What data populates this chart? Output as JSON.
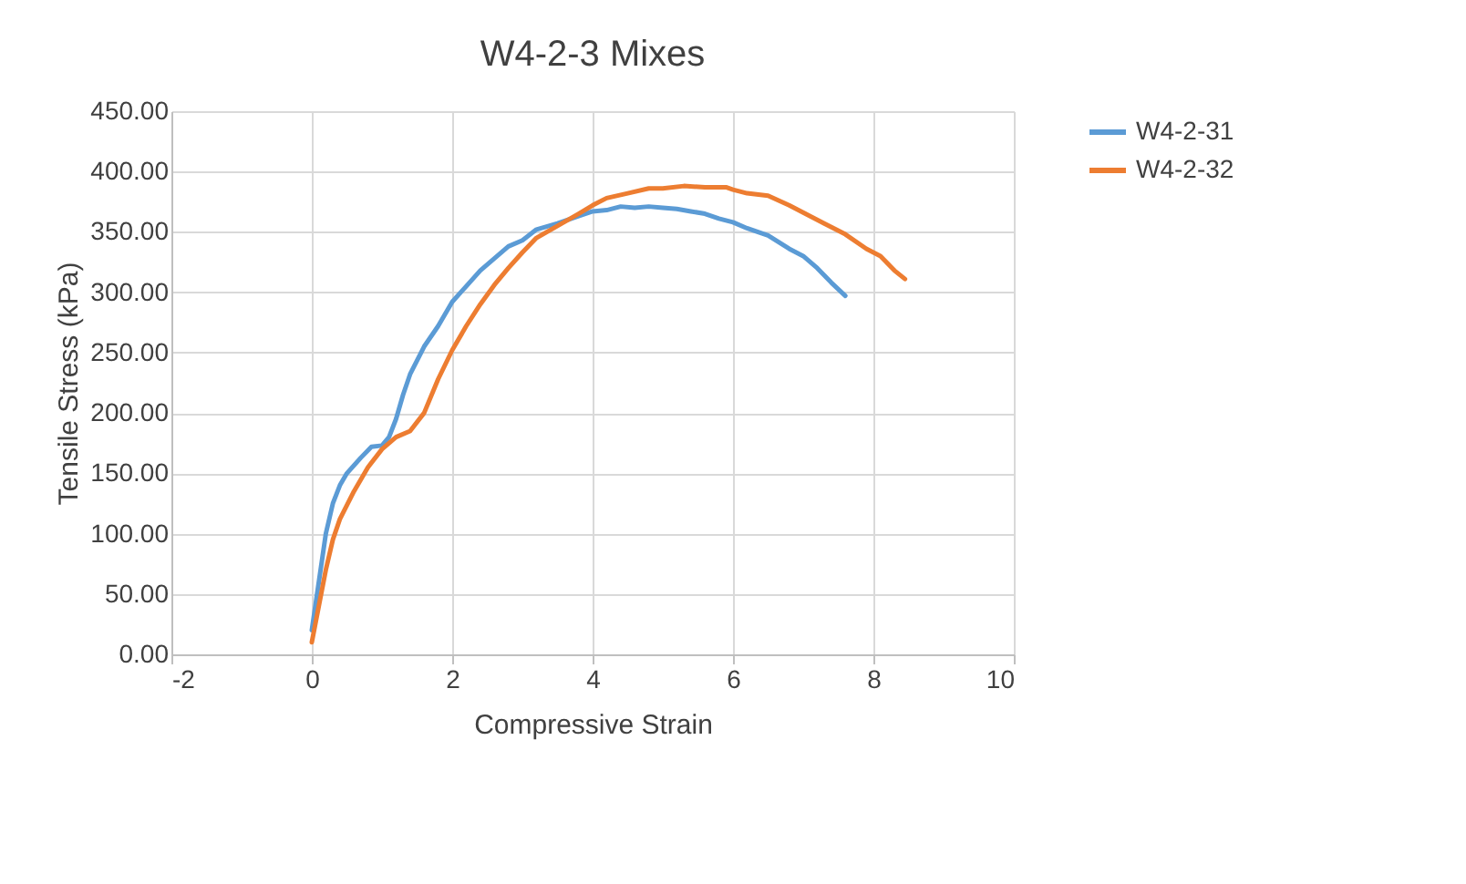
{
  "chart_data": {
    "type": "line",
    "title": "W4-2-3 Mixes",
    "xlabel": "Compressive Strain",
    "ylabel": "Tensile Stress (kPa)",
    "xlim": [
      -2,
      10
    ],
    "xticks": [
      -2,
      0,
      2,
      4,
      6,
      8,
      10
    ],
    "ylim": [
      0,
      450
    ],
    "yticks": [
      {
        "value": 0,
        "label": "0.00"
      },
      {
        "value": 50,
        "label": "50.00"
      },
      {
        "value": 100,
        "label": "100.00"
      },
      {
        "value": 150,
        "label": "150.00"
      },
      {
        "value": 200,
        "label": "200.00"
      },
      {
        "value": 250,
        "label": "250.00"
      },
      {
        "value": 300,
        "label": "300.00"
      },
      {
        "value": 350,
        "label": "350.00"
      },
      {
        "value": 400,
        "label": "400.00"
      },
      {
        "value": 450,
        "label": "450.00"
      }
    ],
    "grid": true,
    "legend": "right",
    "marker": "none",
    "line_style": "solid",
    "series": [
      {
        "name": "W4-2-31",
        "color": "#5b9bd5",
        "x": [
          0,
          0.1,
          0.2,
          0.3,
          0.4,
          0.5,
          0.7,
          0.85,
          1.0,
          1.1,
          1.2,
          1.3,
          1.4,
          1.6,
          1.8,
          2.0,
          2.2,
          2.4,
          2.6,
          2.8,
          3.0,
          3.2,
          3.5,
          3.8,
          4.0,
          4.2,
          4.4,
          4.6,
          4.8,
          5.0,
          5.2,
          5.4,
          5.6,
          5.8,
          6.0,
          6.2,
          6.5,
          6.8,
          7.0,
          7.2,
          7.4,
          7.6
        ],
        "values": [
          20,
          60,
          100,
          125,
          140,
          150,
          163,
          172,
          173,
          180,
          195,
          215,
          232,
          255,
          272,
          292,
          305,
          318,
          328,
          338,
          343,
          352,
          357,
          363,
          367,
          368,
          371,
          370,
          371,
          370,
          369,
          367,
          365,
          361,
          358,
          353,
          347,
          336,
          330,
          320,
          308,
          297
        ]
      },
      {
        "name": "W4-2-32",
        "color": "#ed7d31",
        "x": [
          0,
          0.1,
          0.2,
          0.3,
          0.4,
          0.6,
          0.8,
          1.0,
          1.2,
          1.4,
          1.6,
          1.8,
          2.0,
          2.2,
          2.4,
          2.6,
          2.8,
          3.0,
          3.2,
          3.5,
          3.8,
          4.0,
          4.2,
          4.5,
          4.8,
          5.0,
          5.3,
          5.6,
          5.9,
          6.0,
          6.2,
          6.5,
          6.8,
          7.0,
          7.3,
          7.6,
          7.9,
          8.1,
          8.3,
          8.45
        ],
        "values": [
          10,
          40,
          70,
          95,
          112,
          135,
          155,
          170,
          180,
          185,
          200,
          228,
          252,
          272,
          290,
          306,
          320,
          333,
          345,
          355,
          365,
          372,
          378,
          382,
          386,
          386,
          388,
          387,
          387,
          385,
          382,
          380,
          372,
          366,
          357,
          348,
          336,
          330,
          318,
          311
        ]
      }
    ]
  }
}
